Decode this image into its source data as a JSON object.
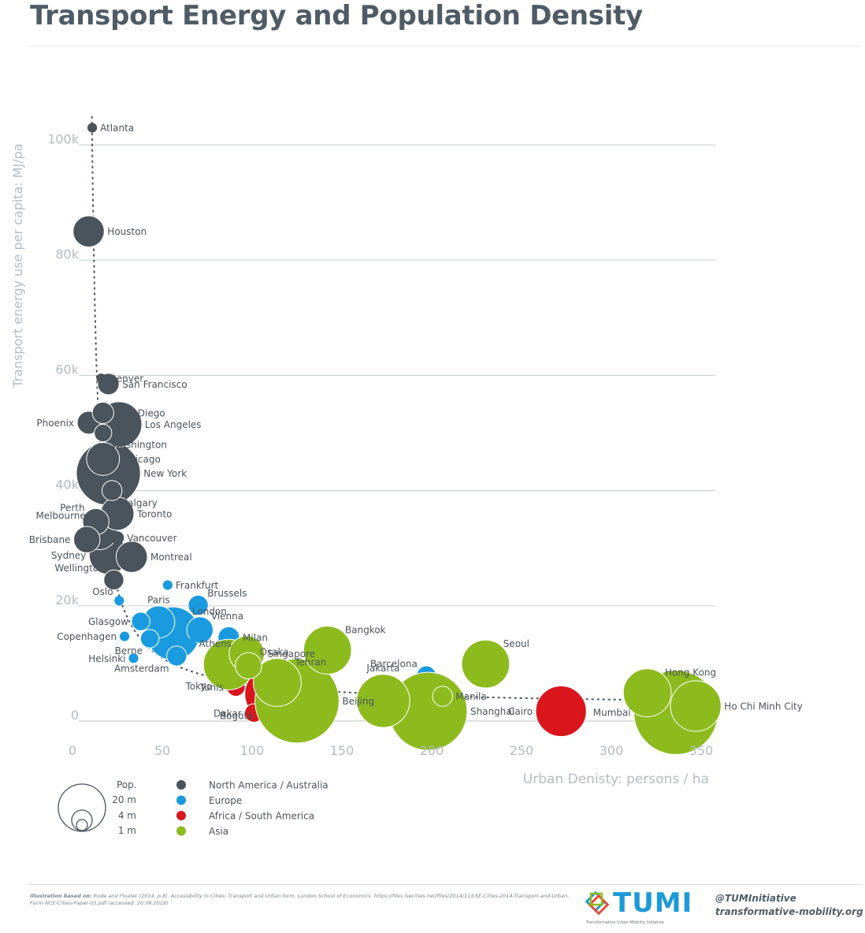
{
  "title": "Transport Energy and Population Density",
  "chart_data": {
    "type": "scatter",
    "title": "Transport Energy and Population Density",
    "xlabel": "Urban Denisty: persons / ha",
    "ylabel": "Transport energy use per capita: MJ/pa",
    "xlim": [
      0,
      360
    ],
    "ylim": [
      0,
      105000
    ],
    "x_ticks": [
      {
        "value": 0,
        "label": "0"
      },
      {
        "value": 50,
        "label": "50"
      },
      {
        "value": 100,
        "label": "100"
      },
      {
        "value": 150,
        "label": "150"
      },
      {
        "value": 200,
        "label": "200"
      },
      {
        "value": 250,
        "label": "250"
      },
      {
        "value": 300,
        "label": "300"
      },
      {
        "value": 350,
        "label": "350"
      }
    ],
    "y_ticks": [
      {
        "value": 0,
        "label": "0"
      },
      {
        "value": 20000,
        "label": "20k"
      },
      {
        "value": 40000,
        "label": "40k"
      },
      {
        "value": 60000,
        "label": "60k"
      },
      {
        "value": 80000,
        "label": "80k"
      },
      {
        "value": 100000,
        "label": "100k"
      }
    ],
    "grid": true,
    "legend_position": "bottom-left",
    "colors": {
      "North America / Australia": "#4a545c",
      "Europe": "#1a9be0",
      "Africa / South America": "#d9161c",
      "Asia": "#8dbb1e"
    },
    "size_legend": {
      "title": "Pop.",
      "values": [
        "20 m",
        "4 m",
        "1 m"
      ]
    },
    "series": [
      {
        "name": "North America / Australia",
        "points": [
          {
            "city": "Atlanta",
            "x": 11,
            "y": 103000,
            "pop": 0.1
          },
          {
            "city": "Houston",
            "x": 9,
            "y": 85000,
            "pop": 3.0
          },
          {
            "city": "Denver",
            "x": 16,
            "y": 59500,
            "pop": 0.1
          },
          {
            "city": "San Francisco",
            "x": 20,
            "y": 58500,
            "pop": 1.2
          },
          {
            "city": "San Diego",
            "x": 17,
            "y": 53500,
            "pop": 1.2
          },
          {
            "city": "Phoenix",
            "x": 9,
            "y": 51800,
            "pop": 1.4
          },
          {
            "city": "Los Angeles",
            "x": 26,
            "y": 51500,
            "pop": 7.0
          },
          {
            "city": "Washington",
            "x": 17,
            "y": 50000,
            "pop": 0.7
          },
          {
            "city": "Chicago",
            "x": 17,
            "y": 45500,
            "pop": 3.4
          },
          {
            "city": "New York",
            "x": 20,
            "y": 43000,
            "pop": 15.0
          },
          {
            "city": "Calgary",
            "x": 22,
            "y": 40000,
            "pop": 1.0
          },
          {
            "city": "Toronto",
            "x": 25,
            "y": 36000,
            "pop": 3.5
          },
          {
            "city": "Perth",
            "x": 13,
            "y": 34600,
            "pop": 2.0
          },
          {
            "city": "Melbourne",
            "x": 15,
            "y": 32800,
            "pop": 4.0
          },
          {
            "city": "Vancouver",
            "x": 25,
            "y": 31800,
            "pop": 0.3
          },
          {
            "city": "Brisbane",
            "x": 8,
            "y": 31500,
            "pop": 2.0
          },
          {
            "city": "Sydney",
            "x": 20,
            "y": 28800,
            "pop": 4.8
          },
          {
            "city": "Montreal",
            "x": 33,
            "y": 28500,
            "pop": 3.0
          },
          {
            "city": "Wellington",
            "x": 23,
            "y": 24500,
            "pop": 1.0
          }
        ]
      },
      {
        "name": "Europe",
        "points": [
          {
            "city": "Frankfurt",
            "x": 53,
            "y": 23600,
            "pop": 0.1
          },
          {
            "city": "Oslo",
            "x": 26,
            "y": 20900,
            "pop": 0.1
          },
          {
            "city": "Brussels",
            "x": 70,
            "y": 20100,
            "pop": 1.0
          },
          {
            "city": "Glasgow",
            "x": 38,
            "y": 17300,
            "pop": 0.8
          },
          {
            "city": "Paris",
            "x": 48,
            "y": 17200,
            "pop": 3.2
          },
          {
            "city": "London",
            "x": 56,
            "y": 15200,
            "pop": 10.0
          },
          {
            "city": "Vienna",
            "x": 71,
            "y": 15800,
            "pop": 2.0
          },
          {
            "city": "Copenhagen",
            "x": 29,
            "y": 14700,
            "pop": 0.1
          },
          {
            "city": "Milan",
            "x": 87,
            "y": 14500,
            "pop": 1.2
          },
          {
            "city": "Berne",
            "x": 43,
            "y": 14300,
            "pop": 0.8
          },
          {
            "city": "Athens",
            "x": 66,
            "y": 13500,
            "pop": 0.1
          },
          {
            "city": "Helsinki",
            "x": 34,
            "y": 10900,
            "pop": 0.1
          },
          {
            "city": "Amsterdam",
            "x": 58,
            "y": 11300,
            "pop": 1.0
          },
          {
            "city": "Barcelona",
            "x": 197,
            "y": 7900,
            "pop": 0.9
          }
        ]
      },
      {
        "name": "Africa / South America",
        "points": [
          {
            "city": "Tunis",
            "x": 91,
            "y": 5900,
            "pop": 0.8
          },
          {
            "city": "Bogotá",
            "x": 110,
            "y": 4700,
            "pop": 9.0
          },
          {
            "city": "Dakar",
            "x": 101,
            "y": 1400,
            "pop": 0.8
          },
          {
            "city": "Cairo",
            "x": 272,
            "y": 1700,
            "pop": 9.0
          }
        ]
      },
      {
        "name": "Asia",
        "points": [
          {
            "city": "Bangkok",
            "x": 142,
            "y": 12300,
            "pop": 8.0
          },
          {
            "city": "Singapore",
            "x": 97,
            "y": 11700,
            "pop": 4.0
          },
          {
            "city": "Osaka",
            "x": 98,
            "y": 9600,
            "pop": 2.0
          },
          {
            "city": "Tokyo",
            "x": 87,
            "y": 9800,
            "pop": 9.0
          },
          {
            "city": "Seoul",
            "x": 230,
            "y": 9900,
            "pop": 8.0
          },
          {
            "city": "Tehran",
            "x": 114,
            "y": 6700,
            "pop": 8.0
          },
          {
            "city": "Jakarta",
            "x": 173,
            "y": 3500,
            "pop": 10.0
          },
          {
            "city": "Beijing",
            "x": 125,
            "y": 3500,
            "pop": 27.0
          },
          {
            "city": "Manila",
            "x": 206,
            "y": 4300,
            "pop": 1.0
          },
          {
            "city": "Shanghai",
            "x": 198,
            "y": 1700,
            "pop": 23.0
          },
          {
            "city": "Hong Kong",
            "x": 320,
            "y": 4900,
            "pop": 8.0
          },
          {
            "city": "Mumbai",
            "x": 336,
            "y": 1500,
            "pop": 27.0
          },
          {
            "city": "Ho Chi Minh City",
            "x": 347,
            "y": 2600,
            "pop": 9.0
          }
        ]
      }
    ],
    "labels": [
      {
        "text": "Atlanta",
        "city": "Atlanta",
        "side": "right"
      },
      {
        "text": "Houston",
        "city": "Houston",
        "side": "right"
      },
      {
        "text": "Denver",
        "city": "Denver",
        "side": "right"
      },
      {
        "text": "San Francisco",
        "city": "San Francisco",
        "side": "right"
      },
      {
        "text": "San Diego",
        "city": "San Diego",
        "side": "right"
      },
      {
        "text": "Phoenix",
        "city": "Phoenix",
        "side": "left"
      },
      {
        "text": "Los Angeles",
        "city": "Los Angeles",
        "side": "right"
      },
      {
        "text": "Washington",
        "city": "Washington",
        "side": "right-below"
      },
      {
        "text": "Chicago",
        "city": "Chicago",
        "side": "right"
      },
      {
        "text": "New York",
        "city": "New York",
        "side": "right"
      },
      {
        "text": "Calgary",
        "city": "Calgary",
        "side": "right-below"
      },
      {
        "text": "Toronto",
        "city": "Toronto",
        "side": "right"
      },
      {
        "text": "Perth",
        "city": "Perth",
        "side": "left-above"
      },
      {
        "text": "Melbourne",
        "city": "Melbourne",
        "side": "left-above"
      },
      {
        "text": "Vancouver",
        "city": "Vancouver",
        "side": "right"
      },
      {
        "text": "Brisbane",
        "city": "Brisbane",
        "side": "left"
      },
      {
        "text": "Sydney",
        "city": "Sydney",
        "side": "left"
      },
      {
        "text": "Montreal",
        "city": "Montreal",
        "side": "right"
      },
      {
        "text": "Wellington",
        "city": "Wellington",
        "side": "left-above"
      },
      {
        "text": "Frankfurt",
        "city": "Frankfurt",
        "side": "right"
      },
      {
        "text": "Oslo",
        "city": "Oslo",
        "side": "left-above"
      },
      {
        "text": "Brussels",
        "city": "Brussels",
        "side": "right-above"
      },
      {
        "text": "Glasgow",
        "city": "Glasgow",
        "side": "left"
      },
      {
        "text": "Paris",
        "city": "Paris",
        "side": "above"
      },
      {
        "text": "London",
        "city": "London",
        "side": "right-above"
      },
      {
        "text": "Vienna",
        "city": "Vienna",
        "side": "right-above"
      },
      {
        "text": "Copenhagen",
        "city": "Copenhagen",
        "side": "left"
      },
      {
        "text": "Milan",
        "city": "Milan",
        "side": "right"
      },
      {
        "text": "Berne",
        "city": "Berne",
        "side": "left-below"
      },
      {
        "text": "Athens",
        "city": "Athens",
        "side": "right"
      },
      {
        "text": "Helsinki",
        "city": "Helsinki",
        "side": "left"
      },
      {
        "text": "Amsterdam",
        "city": "Amsterdam",
        "side": "left-below"
      },
      {
        "text": "Barcelona",
        "city": "Barcelona",
        "side": "left-above"
      },
      {
        "text": "Tunis",
        "city": "Tunis",
        "side": "left"
      },
      {
        "text": "Bogotá",
        "city": "Bogotá",
        "side": "left-below"
      },
      {
        "text": "Dakar",
        "city": "Dakar",
        "side": "left"
      },
      {
        "text": "Cairo",
        "city": "Cairo",
        "side": "left"
      },
      {
        "text": "Bangkok",
        "city": "Bangkok",
        "side": "right-above"
      },
      {
        "text": "Singapore",
        "city": "Singapore",
        "side": "right"
      },
      {
        "text": "Osaka",
        "city": "Osaka",
        "side": "right-above"
      },
      {
        "text": "Tokyo",
        "city": "Tokyo",
        "side": "left-below"
      },
      {
        "text": "Seoul",
        "city": "Seoul",
        "side": "right-above"
      },
      {
        "text": "Tehran",
        "city": "Tehran",
        "side": "right-above"
      },
      {
        "text": "Jakarta",
        "city": "Jakarta",
        "side": "above"
      },
      {
        "text": "Beijing",
        "city": "Beijing",
        "side": "right"
      },
      {
        "text": "Manila",
        "city": "Manila",
        "side": "right"
      },
      {
        "text": "Shanghai",
        "city": "Shanghai",
        "side": "right"
      },
      {
        "text": "Hong Kong",
        "city": "Hong Kong",
        "side": "right-above"
      },
      {
        "text": "Mumbai",
        "city": "Mumbai",
        "side": "left"
      },
      {
        "text": "Ho Chi Minh City",
        "city": "Ho Chi Minh City",
        "side": "right"
      }
    ]
  },
  "footer": {
    "credit_bold": "Illustration based on:",
    "credit_text": "Rode and Floater (2014, p.8). Accessibility in Cities: Transport and Urban form, London School of Economics. https://files.lsecities.net/files/2014/11/LSE-Cities-2014-Transport-and-Urban-Form-NCE-Cities-Paper-03.pdf (accessed: 20.09.2018)",
    "logo": "TUMI",
    "logo_sub": "Transformative Urban Mobility Initiative",
    "handle": "@TUMInitiative",
    "site": "transformative-mobility.org"
  }
}
